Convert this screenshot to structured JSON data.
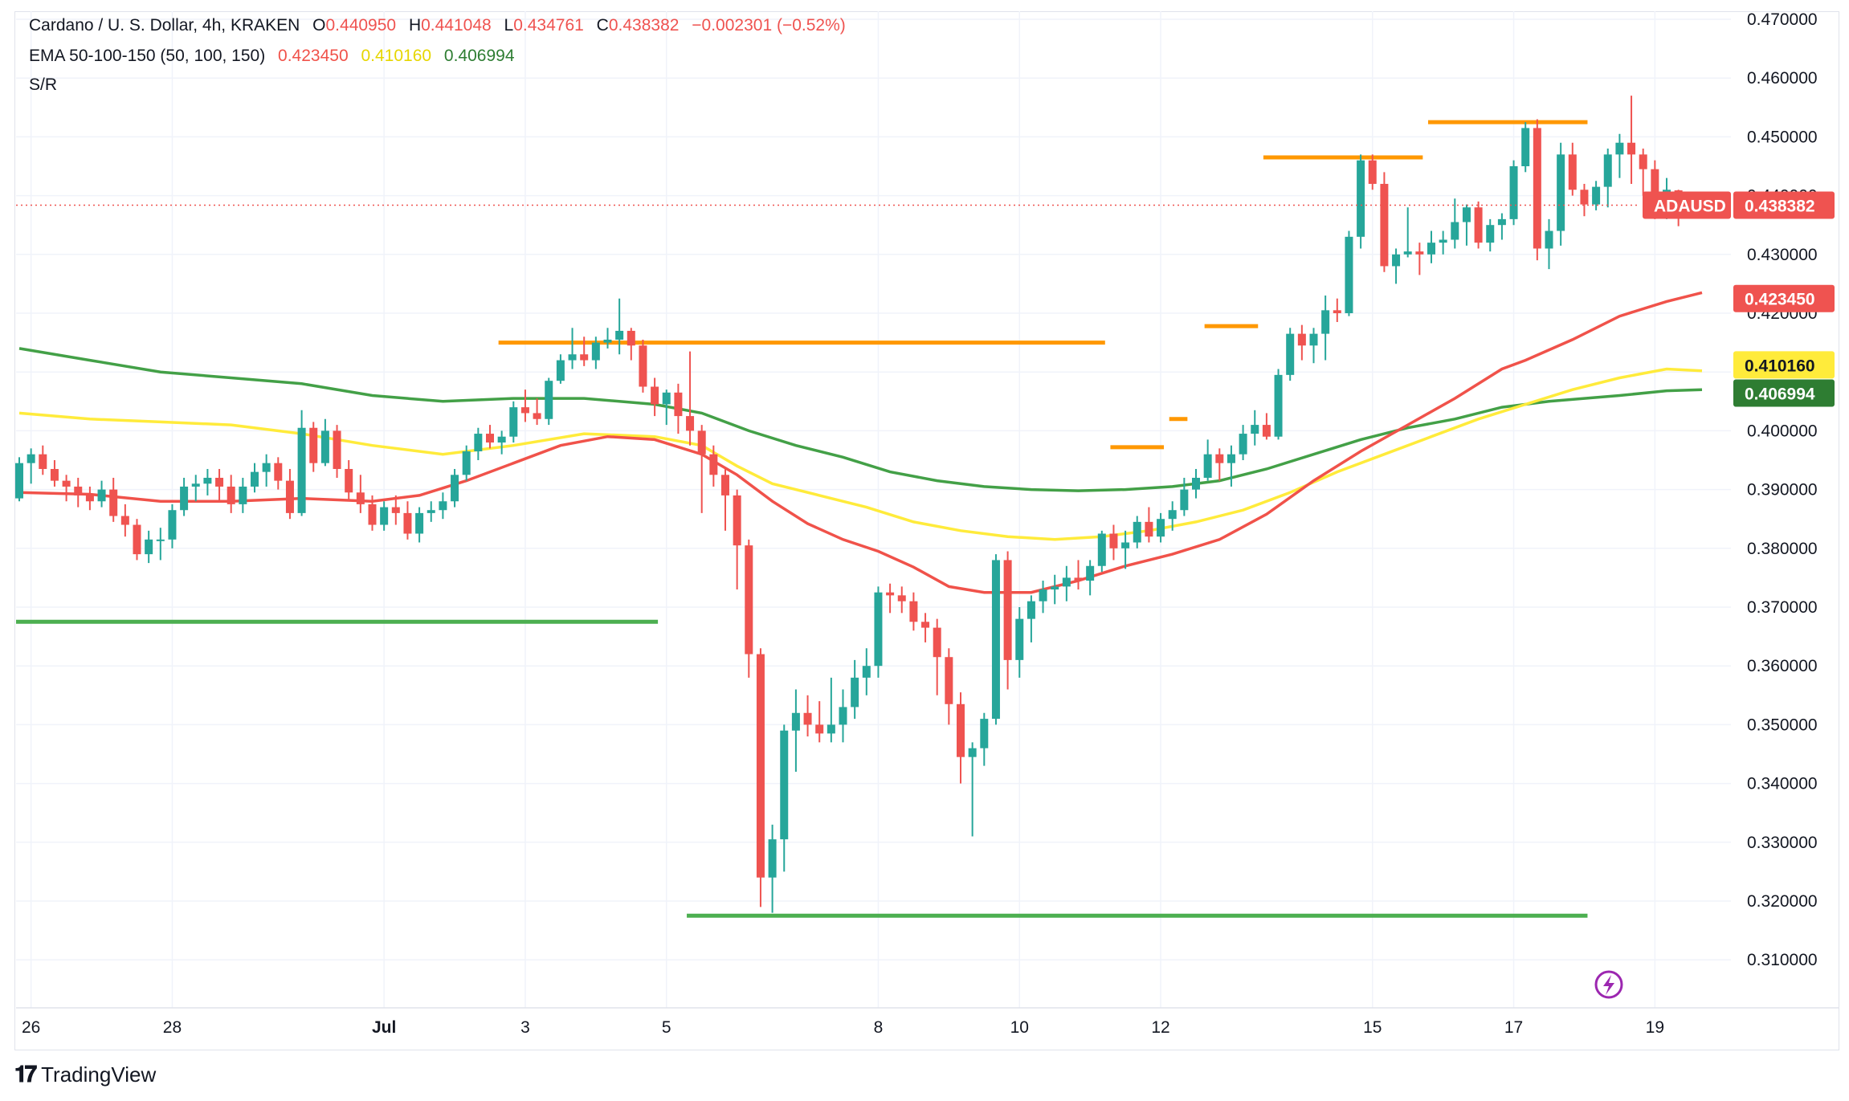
{
  "header": {
    "symbol": "Cardano / U. S. Dollar, 4h, KRAKEN",
    "o_label": "O",
    "o_value": "0.440950",
    "h_label": "H",
    "h_value": "0.441048",
    "l_label": "L",
    "l_value": "0.434761",
    "c_label": "C",
    "c_value": "0.438382",
    "change": "−0.002301 (−0.52%)",
    "ema_label": "EMA 50-100-150 (50, 100, 150)",
    "ema50_value": "0.423450",
    "ema100_value": "0.410160",
    "ema150_value": "0.406994",
    "sr_label": "S/R"
  },
  "badges": {
    "symbol_tag": "ADAUSD",
    "last_price": "0.438382",
    "ema50": "0.423450",
    "ema100": "0.410160",
    "ema150": "0.406994"
  },
  "footer": {
    "brand": "TradingView"
  },
  "colors": {
    "up": "#26a69a",
    "down": "#ef5350",
    "ema50": "#f0524a",
    "ema100": "#ffeb3b",
    "ema150": "#43a047",
    "resistance": "#ff9800",
    "support": "#4caf50",
    "grid": "#f0f3fa"
  },
  "chart_data": {
    "type": "candlestick",
    "timeframe": "4h",
    "ylim": [
      0.305,
      0.472
    ],
    "y_ticks": [
      "0.470000",
      "0.460000",
      "0.450000",
      "0.440000",
      "0.430000",
      "0.420000",
      "0.410000",
      "0.400000",
      "0.390000",
      "0.380000",
      "0.370000",
      "0.360000",
      "0.350000",
      "0.340000",
      "0.330000",
      "0.320000",
      "0.310000"
    ],
    "x_ticks": [
      {
        "label": "26",
        "i": 1
      },
      {
        "label": "28",
        "i": 13
      },
      {
        "label": "Jul",
        "i": 31
      },
      {
        "label": "3",
        "i": 43
      },
      {
        "label": "5",
        "i": 55
      },
      {
        "label": "8",
        "i": 73
      },
      {
        "label": "10",
        "i": 85
      },
      {
        "label": "12",
        "i": 97
      },
      {
        "label": "15",
        "i": 115
      },
      {
        "label": "17",
        "i": 127
      },
      {
        "label": "19",
        "i": 139
      }
    ],
    "candles": [
      [
        0.3885,
        0.3955,
        0.388,
        0.3945
      ],
      [
        0.3945,
        0.397,
        0.391,
        0.396
      ],
      [
        0.396,
        0.3975,
        0.3925,
        0.3935
      ],
      [
        0.3935,
        0.395,
        0.3905,
        0.3915
      ],
      [
        0.3915,
        0.3925,
        0.388,
        0.3905
      ],
      [
        0.3905,
        0.392,
        0.387,
        0.389
      ],
      [
        0.389,
        0.3905,
        0.3865,
        0.388
      ],
      [
        0.388,
        0.3915,
        0.387,
        0.39
      ],
      [
        0.39,
        0.392,
        0.3845,
        0.3855
      ],
      [
        0.3855,
        0.3875,
        0.382,
        0.384
      ],
      [
        0.384,
        0.385,
        0.378,
        0.379
      ],
      [
        0.379,
        0.383,
        0.3775,
        0.3815
      ],
      [
        0.3815,
        0.3835,
        0.378,
        0.3815
      ],
      [
        0.3815,
        0.3875,
        0.38,
        0.3865
      ],
      [
        0.3865,
        0.392,
        0.3855,
        0.3905
      ],
      [
        0.3905,
        0.3925,
        0.388,
        0.391
      ],
      [
        0.391,
        0.3935,
        0.389,
        0.392
      ],
      [
        0.392,
        0.3935,
        0.388,
        0.3905
      ],
      [
        0.3905,
        0.3925,
        0.386,
        0.3875
      ],
      [
        0.3875,
        0.392,
        0.386,
        0.3905
      ],
      [
        0.3905,
        0.3945,
        0.3895,
        0.393
      ],
      [
        0.393,
        0.396,
        0.3905,
        0.3945
      ],
      [
        0.3945,
        0.3955,
        0.39,
        0.3915
      ],
      [
        0.3915,
        0.3935,
        0.385,
        0.386
      ],
      [
        0.386,
        0.4035,
        0.3855,
        0.4005
      ],
      [
        0.4005,
        0.4015,
        0.393,
        0.3945
      ],
      [
        0.3945,
        0.402,
        0.394,
        0.4
      ],
      [
        0.4,
        0.401,
        0.392,
        0.3935
      ],
      [
        0.3935,
        0.395,
        0.388,
        0.3895
      ],
      [
        0.3895,
        0.3925,
        0.386,
        0.3875
      ],
      [
        0.3875,
        0.389,
        0.383,
        0.384
      ],
      [
        0.384,
        0.388,
        0.383,
        0.387
      ],
      [
        0.387,
        0.389,
        0.384,
        0.386
      ],
      [
        0.386,
        0.388,
        0.3815,
        0.3825
      ],
      [
        0.3825,
        0.387,
        0.381,
        0.386
      ],
      [
        0.386,
        0.388,
        0.3845,
        0.3865
      ],
      [
        0.3865,
        0.3895,
        0.385,
        0.388
      ],
      [
        0.388,
        0.3935,
        0.387,
        0.3925
      ],
      [
        0.3925,
        0.3975,
        0.3915,
        0.3965
      ],
      [
        0.3965,
        0.4005,
        0.395,
        0.3995
      ],
      [
        0.3995,
        0.401,
        0.397,
        0.398
      ],
      [
        0.398,
        0.4,
        0.396,
        0.399
      ],
      [
        0.399,
        0.405,
        0.398,
        0.404
      ],
      [
        0.404,
        0.407,
        0.4015,
        0.403
      ],
      [
        0.403,
        0.4055,
        0.401,
        0.402
      ],
      [
        0.402,
        0.409,
        0.401,
        0.4085
      ],
      [
        0.4085,
        0.413,
        0.408,
        0.412
      ],
      [
        0.412,
        0.4175,
        0.4105,
        0.413
      ],
      [
        0.413,
        0.416,
        0.411,
        0.412
      ],
      [
        0.412,
        0.416,
        0.4105,
        0.415
      ],
      [
        0.415,
        0.4175,
        0.414,
        0.4155
      ],
      [
        0.4155,
        0.4225,
        0.413,
        0.417
      ],
      [
        0.417,
        0.4175,
        0.412,
        0.4145
      ],
      [
        0.4145,
        0.4155,
        0.4065,
        0.4075
      ],
      [
        0.4075,
        0.409,
        0.4025,
        0.4045
      ],
      [
        0.4045,
        0.407,
        0.401,
        0.4065
      ],
      [
        0.4065,
        0.408,
        0.3995,
        0.4025
      ],
      [
        0.4025,
        0.4135,
        0.3975,
        0.4
      ],
      [
        0.4,
        0.401,
        0.386,
        0.396
      ],
      [
        0.396,
        0.3975,
        0.3905,
        0.3925
      ],
      [
        0.3925,
        0.3935,
        0.383,
        0.389
      ],
      [
        0.389,
        0.39,
        0.373,
        0.3805
      ],
      [
        0.3805,
        0.3815,
        0.358,
        0.362
      ],
      [
        0.362,
        0.363,
        0.319,
        0.324
      ],
      [
        0.324,
        0.333,
        0.318,
        0.3305
      ],
      [
        0.3305,
        0.35,
        0.325,
        0.349
      ],
      [
        0.349,
        0.356,
        0.342,
        0.352
      ],
      [
        0.352,
        0.355,
        0.348,
        0.35
      ],
      [
        0.35,
        0.354,
        0.347,
        0.3485
      ],
      [
        0.3485,
        0.358,
        0.347,
        0.35
      ],
      [
        0.35,
        0.356,
        0.347,
        0.353
      ],
      [
        0.353,
        0.361,
        0.351,
        0.358
      ],
      [
        0.358,
        0.363,
        0.355,
        0.36
      ],
      [
        0.36,
        0.3735,
        0.358,
        0.3725
      ],
      [
        0.3725,
        0.374,
        0.369,
        0.372
      ],
      [
        0.372,
        0.3735,
        0.369,
        0.371
      ],
      [
        0.371,
        0.3725,
        0.366,
        0.3675
      ],
      [
        0.3675,
        0.369,
        0.364,
        0.3665
      ],
      [
        0.3665,
        0.368,
        0.355,
        0.3615
      ],
      [
        0.3615,
        0.363,
        0.35,
        0.3535
      ],
      [
        0.3535,
        0.3555,
        0.34,
        0.3445
      ],
      [
        0.3445,
        0.347,
        0.331,
        0.346
      ],
      [
        0.346,
        0.352,
        0.343,
        0.351
      ],
      [
        0.351,
        0.379,
        0.35,
        0.378
      ],
      [
        0.378,
        0.3795,
        0.356,
        0.361
      ],
      [
        0.361,
        0.37,
        0.358,
        0.368
      ],
      [
        0.368,
        0.372,
        0.364,
        0.371
      ],
      [
        0.371,
        0.3745,
        0.369,
        0.373
      ],
      [
        0.373,
        0.3755,
        0.3705,
        0.3735
      ],
      [
        0.3735,
        0.377,
        0.371,
        0.375
      ],
      [
        0.375,
        0.378,
        0.373,
        0.3745
      ],
      [
        0.3745,
        0.378,
        0.372,
        0.377
      ],
      [
        0.377,
        0.383,
        0.376,
        0.3825
      ],
      [
        0.3825,
        0.384,
        0.378,
        0.38
      ],
      [
        0.38,
        0.383,
        0.3765,
        0.381
      ],
      [
        0.381,
        0.3855,
        0.38,
        0.3845
      ],
      [
        0.3845,
        0.387,
        0.381,
        0.382
      ],
      [
        0.382,
        0.386,
        0.381,
        0.385
      ],
      [
        0.385,
        0.388,
        0.383,
        0.3865
      ],
      [
        0.3865,
        0.392,
        0.3855,
        0.39
      ],
      [
        0.39,
        0.3935,
        0.3885,
        0.392
      ],
      [
        0.392,
        0.3985,
        0.3915,
        0.396
      ],
      [
        0.396,
        0.397,
        0.3915,
        0.3945
      ],
      [
        0.3945,
        0.3975,
        0.3905,
        0.396
      ],
      [
        0.396,
        0.401,
        0.395,
        0.3995
      ],
      [
        0.3995,
        0.4035,
        0.3975,
        0.401
      ],
      [
        0.401,
        0.403,
        0.3985,
        0.399
      ],
      [
        0.399,
        0.4105,
        0.3985,
        0.4095
      ],
      [
        0.4095,
        0.4175,
        0.4085,
        0.4165
      ],
      [
        0.4165,
        0.418,
        0.412,
        0.4145
      ],
      [
        0.4145,
        0.4175,
        0.4115,
        0.4165
      ],
      [
        0.4165,
        0.423,
        0.412,
        0.4205
      ],
      [
        0.4205,
        0.4225,
        0.4185,
        0.42
      ],
      [
        0.42,
        0.434,
        0.4195,
        0.433
      ],
      [
        0.433,
        0.447,
        0.431,
        0.446
      ],
      [
        0.446,
        0.447,
        0.441,
        0.442
      ],
      [
        0.442,
        0.444,
        0.427,
        0.428
      ],
      [
        0.428,
        0.431,
        0.425,
        0.43
      ],
      [
        0.43,
        0.438,
        0.4295,
        0.4305
      ],
      [
        0.4305,
        0.432,
        0.4265,
        0.43
      ],
      [
        0.43,
        0.434,
        0.4285,
        0.432
      ],
      [
        0.432,
        0.434,
        0.43,
        0.4325
      ],
      [
        0.4325,
        0.4395,
        0.431,
        0.4355
      ],
      [
        0.4355,
        0.4385,
        0.4315,
        0.438
      ],
      [
        0.438,
        0.439,
        0.431,
        0.432
      ],
      [
        0.432,
        0.436,
        0.4305,
        0.435
      ],
      [
        0.435,
        0.437,
        0.4325,
        0.436
      ],
      [
        0.436,
        0.446,
        0.435,
        0.445
      ],
      [
        0.445,
        0.4525,
        0.444,
        0.4515
      ],
      [
        0.4515,
        0.453,
        0.429,
        0.431
      ],
      [
        0.431,
        0.436,
        0.4275,
        0.434
      ],
      [
        0.434,
        0.449,
        0.4315,
        0.447
      ],
      [
        0.447,
        0.449,
        0.44,
        0.441
      ],
      [
        0.441,
        0.442,
        0.4365,
        0.4385
      ],
      [
        0.4385,
        0.4425,
        0.4375,
        0.4415
      ],
      [
        0.4415,
        0.448,
        0.438,
        0.447
      ],
      [
        0.447,
        0.4505,
        0.443,
        0.449
      ],
      [
        0.449,
        0.457,
        0.442,
        0.447
      ],
      [
        0.447,
        0.448,
        0.44,
        0.4445
      ],
      [
        0.4445,
        0.446,
        0.436,
        0.437
      ],
      [
        0.437,
        0.443,
        0.436,
        0.441
      ],
      [
        0.4409,
        0.441,
        0.4348,
        0.4384
      ]
    ],
    "ema50": [
      [
        0,
        0.3895
      ],
      [
        6,
        0.3892
      ],
      [
        12,
        0.388
      ],
      [
        18,
        0.388
      ],
      [
        24,
        0.3885
      ],
      [
        30,
        0.388
      ],
      [
        34,
        0.389
      ],
      [
        38,
        0.3915
      ],
      [
        42,
        0.3945
      ],
      [
        46,
        0.3975
      ],
      [
        50,
        0.399
      ],
      [
        54,
        0.3985
      ],
      [
        58,
        0.396
      ],
      [
        61,
        0.3925
      ],
      [
        64,
        0.388
      ],
      [
        67,
        0.3842
      ],
      [
        70,
        0.3815
      ],
      [
        73,
        0.3795
      ],
      [
        76,
        0.3768
      ],
      [
        79,
        0.3735
      ],
      [
        82,
        0.3725
      ],
      [
        86,
        0.3725
      ],
      [
        90,
        0.3745
      ],
      [
        94,
        0.377
      ],
      [
        98,
        0.379
      ],
      [
        102,
        0.3815
      ],
      [
        106,
        0.3858
      ],
      [
        110,
        0.3915
      ],
      [
        114,
        0.3965
      ],
      [
        118,
        0.401
      ],
      [
        122,
        0.4055
      ],
      [
        126,
        0.4105
      ],
      [
        128,
        0.412
      ],
      [
        132,
        0.4155
      ],
      [
        136,
        0.4195
      ],
      [
        140,
        0.422
      ],
      [
        143,
        0.4235
      ]
    ],
    "ema100": [
      [
        0,
        0.403
      ],
      [
        6,
        0.402
      ],
      [
        12,
        0.4015
      ],
      [
        18,
        0.401
      ],
      [
        24,
        0.3995
      ],
      [
        30,
        0.3975
      ],
      [
        36,
        0.396
      ],
      [
        42,
        0.3975
      ],
      [
        48,
        0.3995
      ],
      [
        54,
        0.399
      ],
      [
        58,
        0.3975
      ],
      [
        61,
        0.394
      ],
      [
        64,
        0.391
      ],
      [
        68,
        0.389
      ],
      [
        72,
        0.387
      ],
      [
        76,
        0.3845
      ],
      [
        80,
        0.383
      ],
      [
        84,
        0.382
      ],
      [
        88,
        0.3815
      ],
      [
        92,
        0.382
      ],
      [
        96,
        0.383
      ],
      [
        100,
        0.3845
      ],
      [
        104,
        0.3865
      ],
      [
        108,
        0.3895
      ],
      [
        112,
        0.393
      ],
      [
        116,
        0.396
      ],
      [
        120,
        0.399
      ],
      [
        124,
        0.402
      ],
      [
        128,
        0.4045
      ],
      [
        132,
        0.407
      ],
      [
        136,
        0.409
      ],
      [
        140,
        0.4105
      ],
      [
        143,
        0.4102
      ]
    ],
    "ema150": [
      [
        0,
        0.414
      ],
      [
        6,
        0.412
      ],
      [
        12,
        0.41
      ],
      [
        18,
        0.409
      ],
      [
        24,
        0.408
      ],
      [
        30,
        0.406
      ],
      [
        36,
        0.405
      ],
      [
        42,
        0.4055
      ],
      [
        48,
        0.4055
      ],
      [
        54,
        0.4045
      ],
      [
        58,
        0.403
      ],
      [
        62,
        0.4
      ],
      [
        66,
        0.3975
      ],
      [
        70,
        0.3955
      ],
      [
        74,
        0.393
      ],
      [
        78,
        0.3915
      ],
      [
        82,
        0.3905
      ],
      [
        86,
        0.39
      ],
      [
        90,
        0.3898
      ],
      [
        94,
        0.39
      ],
      [
        98,
        0.3905
      ],
      [
        102,
        0.3915
      ],
      [
        106,
        0.3935
      ],
      [
        110,
        0.396
      ],
      [
        114,
        0.3985
      ],
      [
        118,
        0.4005
      ],
      [
        122,
        0.402
      ],
      [
        126,
        0.404
      ],
      [
        130,
        0.405
      ],
      [
        136,
        0.406
      ],
      [
        140,
        0.4068
      ],
      [
        143,
        0.407
      ]
    ],
    "sr_lines": [
      {
        "kind": "resistance",
        "y": 0.415,
        "i0": 41,
        "i1": 92
      },
      {
        "kind": "support",
        "y": 0.3675,
        "i0": 0,
        "i1": 54
      },
      {
        "kind": "support",
        "y": 0.3175,
        "i0": 57,
        "i1": 133
      },
      {
        "kind": "resistance",
        "y": 0.4465,
        "i0": 106,
        "i1": 119
      },
      {
        "kind": "resistance",
        "y": 0.4525,
        "i0": 120,
        "i1": 133
      },
      {
        "kind": "resistance",
        "y": 0.4178,
        "i0": 101,
        "i1": 105
      },
      {
        "kind": "resistance",
        "y": 0.3972,
        "i0": 93,
        "i1": 97
      },
      {
        "kind": "resistance",
        "y": 0.402,
        "i0": 98,
        "i1": 99
      }
    ],
    "last_price": 0.438382
  }
}
